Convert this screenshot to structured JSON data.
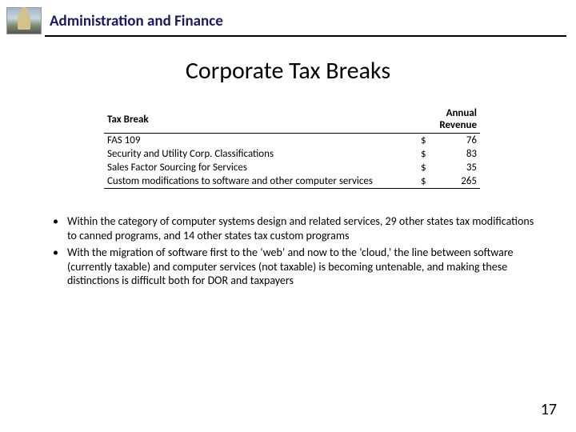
{
  "header": {
    "title": "Administration and Finance"
  },
  "slide": {
    "title": "Corporate Tax Breaks",
    "page_number": "17"
  },
  "table": {
    "col_tax_break": "Tax Break",
    "col_revenue": "Annual Revenue",
    "currency": "$",
    "rows": [
      {
        "label": "FAS 109",
        "value": "76"
      },
      {
        "label": "Security and Utility Corp. Classifications",
        "value": "83"
      },
      {
        "label": "Sales Factor Sourcing for Services",
        "value": "35"
      },
      {
        "label": "Custom modifications to software and other computer services",
        "value": "265"
      }
    ]
  },
  "bullets": {
    "b1": "Within the category of computer systems design and related services, 29 other states tax modifications to canned programs, and 14 other states tax custom programs",
    "b2": "With the migration of software first to the ‘web’ and now to the ‘cloud,’ the line between software (currently taxable) and computer services (not taxable) is becoming untenable, and making these distinctions is difficult both for DOR and taxpayers"
  },
  "colors": {
    "header_text": "#1a1a5c",
    "rule": "#000000",
    "background": "#ffffff"
  }
}
